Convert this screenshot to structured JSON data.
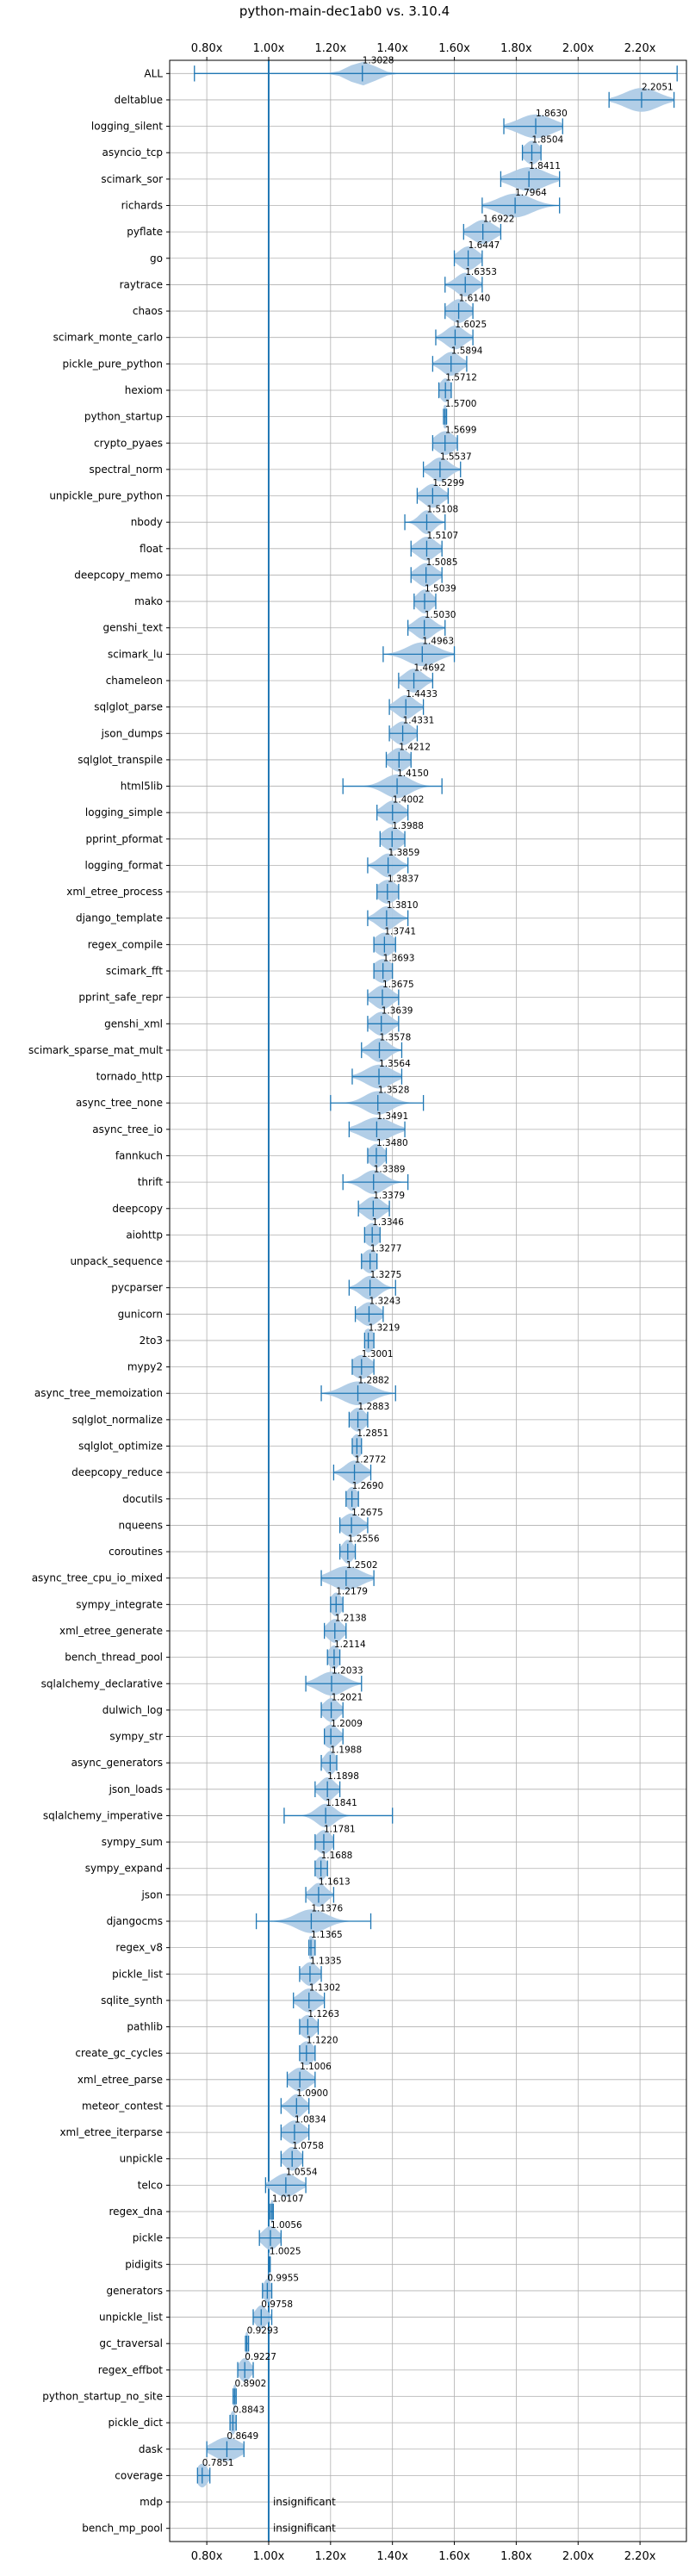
{
  "chart_data": {
    "type": "violin",
    "title": "python-main-dec1ab0 vs. 3.10.4",
    "xlabel": "",
    "ylabel": "",
    "xlim": [
      0.68,
      2.35
    ],
    "xticks": [
      0.8,
      1.0,
      1.2,
      1.4,
      1.6,
      1.8,
      2.0,
      2.2
    ],
    "xtick_labels": [
      "0.80x",
      "1.00x",
      "1.20x",
      "1.40x",
      "1.60x",
      "1.80x",
      "2.00x",
      "2.20x"
    ],
    "reference_line": 1.0,
    "grid": true,
    "colors": {
      "violin": "#aecbe6",
      "line": "#1f77b4",
      "grid": "#b0b0b0"
    },
    "benchmarks": [
      {
        "name": "ALL",
        "value": 1.3028,
        "label": "1.3028",
        "min": 0.76,
        "max": 2.32,
        "spread": 0.07
      },
      {
        "name": "deltablue",
        "value": 2.2051,
        "label": "2.2051",
        "min": 2.1,
        "max": 2.31,
        "spread": 0.09
      },
      {
        "name": "logging_silent",
        "value": 1.863,
        "label": "1.8630",
        "min": 1.76,
        "max": 1.95,
        "spread": 0.09
      },
      {
        "name": "asyncio_tcp",
        "value": 1.8504,
        "label": "1.8504",
        "min": 1.82,
        "max": 1.88,
        "spread": 0.04
      },
      {
        "name": "scimark_sor",
        "value": 1.8411,
        "label": "1.8411",
        "min": 1.75,
        "max": 1.94,
        "spread": 0.09
      },
      {
        "name": "richards",
        "value": 1.7964,
        "label": "1.7964",
        "min": 1.69,
        "max": 1.94,
        "spread": 0.09
      },
      {
        "name": "pyflate",
        "value": 1.6922,
        "label": "1.6922",
        "min": 1.63,
        "max": 1.75,
        "spread": 0.06
      },
      {
        "name": "go",
        "value": 1.6447,
        "label": "1.6447",
        "min": 1.6,
        "max": 1.69,
        "spread": 0.05
      },
      {
        "name": "raytrace",
        "value": 1.6353,
        "label": "1.6353",
        "min": 1.57,
        "max": 1.69,
        "spread": 0.05
      },
      {
        "name": "chaos",
        "value": 1.614,
        "label": "1.6140",
        "min": 1.57,
        "max": 1.66,
        "spread": 0.05
      },
      {
        "name": "scimark_monte_carlo",
        "value": 1.6025,
        "label": "1.6025",
        "min": 1.54,
        "max": 1.66,
        "spread": 0.05
      },
      {
        "name": "pickle_pure_python",
        "value": 1.5894,
        "label": "1.5894",
        "min": 1.53,
        "max": 1.64,
        "spread": 0.05
      },
      {
        "name": "hexiom",
        "value": 1.5712,
        "label": "1.5712",
        "min": 1.55,
        "max": 1.59,
        "spread": 0.03
      },
      {
        "name": "python_startup",
        "value": 1.57,
        "label": "1.5700",
        "min": 1.565,
        "max": 1.575,
        "spread": 0.015
      },
      {
        "name": "crypto_pyaes",
        "value": 1.5699,
        "label": "1.5699",
        "min": 1.53,
        "max": 1.61,
        "spread": 0.05
      },
      {
        "name": "spectral_norm",
        "value": 1.5537,
        "label": "1.5537",
        "min": 1.5,
        "max": 1.62,
        "spread": 0.05
      },
      {
        "name": "unpickle_pure_python",
        "value": 1.5299,
        "label": "1.5299",
        "min": 1.48,
        "max": 1.58,
        "spread": 0.05
      },
      {
        "name": "nbody",
        "value": 1.5108,
        "label": "1.5108",
        "min": 1.44,
        "max": 1.57,
        "spread": 0.04
      },
      {
        "name": "float",
        "value": 1.5107,
        "label": "1.5107",
        "min": 1.46,
        "max": 1.56,
        "spread": 0.05
      },
      {
        "name": "deepcopy_memo",
        "value": 1.5085,
        "label": "1.5085",
        "min": 1.46,
        "max": 1.56,
        "spread": 0.05
      },
      {
        "name": "mako",
        "value": 1.5039,
        "label": "1.5039",
        "min": 1.47,
        "max": 1.54,
        "spread": 0.04
      },
      {
        "name": "genshi_text",
        "value": 1.503,
        "label": "1.5030",
        "min": 1.45,
        "max": 1.57,
        "spread": 0.05
      },
      {
        "name": "scimark_lu",
        "value": 1.4963,
        "label": "1.4963",
        "min": 1.37,
        "max": 1.6,
        "spread": 0.08
      },
      {
        "name": "chameleon",
        "value": 1.4692,
        "label": "1.4692",
        "min": 1.42,
        "max": 1.53,
        "spread": 0.05
      },
      {
        "name": "sqlglot_parse",
        "value": 1.4433,
        "label": "1.4433",
        "min": 1.39,
        "max": 1.5,
        "spread": 0.05
      },
      {
        "name": "json_dumps",
        "value": 1.4331,
        "label": "1.4331",
        "min": 1.39,
        "max": 1.48,
        "spread": 0.05
      },
      {
        "name": "sqlglot_transpile",
        "value": 1.4212,
        "label": "1.4212",
        "min": 1.38,
        "max": 1.46,
        "spread": 0.05
      },
      {
        "name": "html5lib",
        "value": 1.415,
        "label": "1.4150",
        "min": 1.24,
        "max": 1.56,
        "spread": 0.07
      },
      {
        "name": "logging_simple",
        "value": 1.4002,
        "label": "1.4002",
        "min": 1.35,
        "max": 1.45,
        "spread": 0.05
      },
      {
        "name": "pprint_pformat",
        "value": 1.3988,
        "label": "1.3988",
        "min": 1.36,
        "max": 1.44,
        "spread": 0.05
      },
      {
        "name": "logging_format",
        "value": 1.3859,
        "label": "1.3859",
        "min": 1.32,
        "max": 1.45,
        "spread": 0.05
      },
      {
        "name": "xml_etree_process",
        "value": 1.3837,
        "label": "1.3837",
        "min": 1.35,
        "max": 1.42,
        "spread": 0.05
      },
      {
        "name": "django_template",
        "value": 1.381,
        "label": "1.3810",
        "min": 1.32,
        "max": 1.45,
        "spread": 0.05
      },
      {
        "name": "regex_compile",
        "value": 1.3741,
        "label": "1.3741",
        "min": 1.34,
        "max": 1.41,
        "spread": 0.05
      },
      {
        "name": "scimark_fft",
        "value": 1.3693,
        "label": "1.3693",
        "min": 1.34,
        "max": 1.4,
        "spread": 0.05
      },
      {
        "name": "pprint_safe_repr",
        "value": 1.3675,
        "label": "1.3675",
        "min": 1.32,
        "max": 1.42,
        "spread": 0.05
      },
      {
        "name": "genshi_xml",
        "value": 1.3639,
        "label": "1.3639",
        "min": 1.32,
        "max": 1.42,
        "spread": 0.05
      },
      {
        "name": "scimark_sparse_mat_mult",
        "value": 1.3578,
        "label": "1.3578",
        "min": 1.3,
        "max": 1.43,
        "spread": 0.05
      },
      {
        "name": "tornado_http",
        "value": 1.3564,
        "label": "1.3564",
        "min": 1.27,
        "max": 1.43,
        "spread": 0.07
      },
      {
        "name": "async_tree_none",
        "value": 1.3528,
        "label": "1.3528",
        "min": 1.2,
        "max": 1.5,
        "spread": 0.07
      },
      {
        "name": "async_tree_io",
        "value": 1.3491,
        "label": "1.3491",
        "min": 1.26,
        "max": 1.44,
        "spread": 0.08
      },
      {
        "name": "fannkuch",
        "value": 1.348,
        "label": "1.3480",
        "min": 1.32,
        "max": 1.38,
        "spread": 0.04
      },
      {
        "name": "thrift",
        "value": 1.3389,
        "label": "1.3389",
        "min": 1.24,
        "max": 1.45,
        "spread": 0.06
      },
      {
        "name": "deepcopy",
        "value": 1.3379,
        "label": "1.3379",
        "min": 1.29,
        "max": 1.39,
        "spread": 0.05
      },
      {
        "name": "aiohttp",
        "value": 1.3346,
        "label": "1.3346",
        "min": 1.31,
        "max": 1.36,
        "spread": 0.04
      },
      {
        "name": "unpack_sequence",
        "value": 1.3277,
        "label": "1.3277",
        "min": 1.3,
        "max": 1.35,
        "spread": 0.04
      },
      {
        "name": "pycparser",
        "value": 1.3275,
        "label": "1.3275",
        "min": 1.26,
        "max": 1.41,
        "spread": 0.05
      },
      {
        "name": "gunicorn",
        "value": 1.3243,
        "label": "1.3243",
        "min": 1.28,
        "max": 1.37,
        "spread": 0.05
      },
      {
        "name": "2to3",
        "value": 1.3219,
        "label": "1.3219",
        "min": 1.31,
        "max": 1.34,
        "spread": 0.03
      },
      {
        "name": "mypy2",
        "value": 1.3001,
        "label": "1.3001",
        "min": 1.27,
        "max": 1.34,
        "spread": 0.05
      },
      {
        "name": "async_tree_memoization",
        "value": 1.2882,
        "label": "1.2882",
        "min": 1.17,
        "max": 1.41,
        "spread": 0.08
      },
      {
        "name": "sqlglot_normalize",
        "value": 1.2883,
        "label": "1.2883",
        "min": 1.26,
        "max": 1.32,
        "spread": 0.04
      },
      {
        "name": "sqlglot_optimize",
        "value": 1.2851,
        "label": "1.2851",
        "min": 1.27,
        "max": 1.3,
        "spread": 0.03
      },
      {
        "name": "deepcopy_reduce",
        "value": 1.2772,
        "label": "1.2772",
        "min": 1.21,
        "max": 1.33,
        "spread": 0.05
      },
      {
        "name": "docutils",
        "value": 1.269,
        "label": "1.2690",
        "min": 1.25,
        "max": 1.29,
        "spread": 0.03
      },
      {
        "name": "nqueens",
        "value": 1.2675,
        "label": "1.2675",
        "min": 1.23,
        "max": 1.32,
        "spread": 0.05
      },
      {
        "name": "coroutines",
        "value": 1.2556,
        "label": "1.2556",
        "min": 1.23,
        "max": 1.28,
        "spread": 0.03
      },
      {
        "name": "async_tree_cpu_io_mixed",
        "value": 1.2502,
        "label": "1.2502",
        "min": 1.17,
        "max": 1.34,
        "spread": 0.08
      },
      {
        "name": "sympy_integrate",
        "value": 1.2179,
        "label": "1.2179",
        "min": 1.2,
        "max": 1.24,
        "spread": 0.03
      },
      {
        "name": "xml_etree_generate",
        "value": 1.2138,
        "label": "1.2138",
        "min": 1.18,
        "max": 1.25,
        "spread": 0.04
      },
      {
        "name": "bench_thread_pool",
        "value": 1.2114,
        "label": "1.2114",
        "min": 1.19,
        "max": 1.23,
        "spread": 0.03
      },
      {
        "name": "sqlalchemy_declarative",
        "value": 1.2033,
        "label": "1.2033",
        "min": 1.12,
        "max": 1.3,
        "spread": 0.07
      },
      {
        "name": "dulwich_log",
        "value": 1.2021,
        "label": "1.2021",
        "min": 1.17,
        "max": 1.24,
        "spread": 0.04
      },
      {
        "name": "sympy_str",
        "value": 1.2009,
        "label": "1.2009",
        "min": 1.18,
        "max": 1.24,
        "spread": 0.04
      },
      {
        "name": "async_generators",
        "value": 1.1988,
        "label": "1.1988",
        "min": 1.17,
        "max": 1.22,
        "spread": 0.03
      },
      {
        "name": "json_loads",
        "value": 1.1898,
        "label": "1.1898",
        "min": 1.15,
        "max": 1.23,
        "spread": 0.04
      },
      {
        "name": "sqlalchemy_imperative",
        "value": 1.1841,
        "label": "1.1841",
        "min": 1.05,
        "max": 1.4,
        "spread": 0.05
      },
      {
        "name": "sympy_sum",
        "value": 1.1781,
        "label": "1.1781",
        "min": 1.15,
        "max": 1.21,
        "spread": 0.04
      },
      {
        "name": "sympy_expand",
        "value": 1.1688,
        "label": "1.1688",
        "min": 1.15,
        "max": 1.19,
        "spread": 0.03
      },
      {
        "name": "json",
        "value": 1.1613,
        "label": "1.1613",
        "min": 1.12,
        "max": 1.21,
        "spread": 0.04
      },
      {
        "name": "djangocms",
        "value": 1.1376,
        "label": "1.1376",
        "min": 0.96,
        "max": 1.33,
        "spread": 0.08
      },
      {
        "name": "regex_v8",
        "value": 1.1365,
        "label": "1.1365",
        "min": 1.13,
        "max": 1.15,
        "spread": 0.02
      },
      {
        "name": "pickle_list",
        "value": 1.1335,
        "label": "1.1335",
        "min": 1.1,
        "max": 1.17,
        "spread": 0.04
      },
      {
        "name": "sqlite_synth",
        "value": 1.1302,
        "label": "1.1302",
        "min": 1.08,
        "max": 1.18,
        "spread": 0.05
      },
      {
        "name": "pathlib",
        "value": 1.1263,
        "label": "1.1263",
        "min": 1.1,
        "max": 1.16,
        "spread": 0.04
      },
      {
        "name": "create_gc_cycles",
        "value": 1.122,
        "label": "1.1220",
        "min": 1.1,
        "max": 1.15,
        "spread": 0.04
      },
      {
        "name": "xml_etree_parse",
        "value": 1.1006,
        "label": "1.1006",
        "min": 1.06,
        "max": 1.15,
        "spread": 0.05
      },
      {
        "name": "meteor_contest",
        "value": 1.09,
        "label": "1.0900",
        "min": 1.04,
        "max": 1.13,
        "spread": 0.04
      },
      {
        "name": "xml_etree_iterparse",
        "value": 1.0834,
        "label": "1.0834",
        "min": 1.04,
        "max": 1.13,
        "spread": 0.05
      },
      {
        "name": "unpickle",
        "value": 1.0758,
        "label": "1.0758",
        "min": 1.04,
        "max": 1.11,
        "spread": 0.04
      },
      {
        "name": "telco",
        "value": 1.0554,
        "label": "1.0554",
        "min": 0.99,
        "max": 1.12,
        "spread": 0.06
      },
      {
        "name": "regex_dna",
        "value": 1.0107,
        "label": "1.0107",
        "min": 1.005,
        "max": 1.015,
        "spread": 0.01
      },
      {
        "name": "pickle",
        "value": 1.0056,
        "label": "1.0056",
        "min": 0.97,
        "max": 1.04,
        "spread": 0.04
      },
      {
        "name": "pidigits",
        "value": 1.0025,
        "label": "1.0025",
        "min": 1.0,
        "max": 1.005,
        "spread": 0.01
      },
      {
        "name": "generators",
        "value": 0.9955,
        "label": "0.9955",
        "min": 0.98,
        "max": 1.01,
        "spread": 0.02
      },
      {
        "name": "unpickle_list",
        "value": 0.9758,
        "label": "0.9758",
        "min": 0.95,
        "max": 1.01,
        "spread": 0.03
      },
      {
        "name": "gc_traversal",
        "value": 0.9293,
        "label": "0.9293",
        "min": 0.925,
        "max": 0.935,
        "spread": 0.01
      },
      {
        "name": "regex_effbot",
        "value": 0.9227,
        "label": "0.9227",
        "min": 0.9,
        "max": 0.95,
        "spread": 0.03
      },
      {
        "name": "python_startup_no_site",
        "value": 0.8902,
        "label": "0.8902",
        "min": 0.885,
        "max": 0.895,
        "spread": 0.01
      },
      {
        "name": "pickle_dict",
        "value": 0.8843,
        "label": "0.8843",
        "min": 0.875,
        "max": 0.895,
        "spread": 0.015
      },
      {
        "name": "dask",
        "value": 0.8649,
        "label": "0.8649",
        "min": 0.8,
        "max": 0.92,
        "spread": 0.07
      },
      {
        "name": "coverage",
        "value": 0.7851,
        "label": "0.7851",
        "min": 0.77,
        "max": 0.81,
        "spread": 0.03
      },
      {
        "name": "mdp",
        "value": null,
        "label": "insignificant",
        "min": null,
        "max": null,
        "spread": 0
      },
      {
        "name": "bench_mp_pool",
        "value": null,
        "label": "insignificant",
        "min": null,
        "max": null,
        "spread": 0
      }
    ]
  }
}
